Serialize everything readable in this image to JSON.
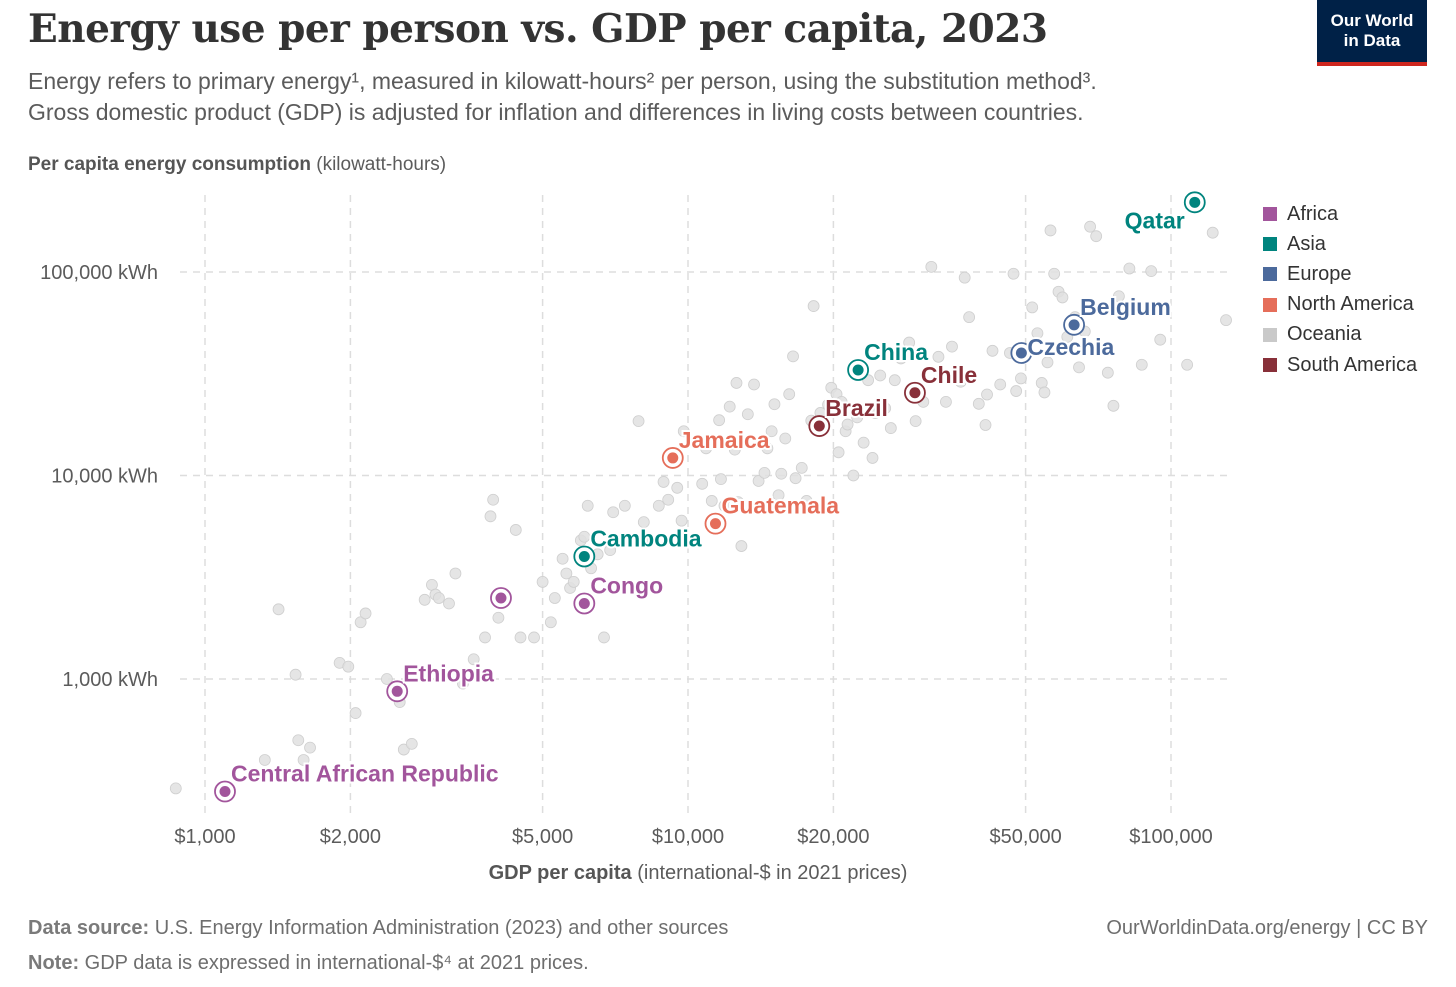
{
  "header": {
    "title": "Energy use per person vs. GDP per capita, 2023",
    "subtitle_line1": "Energy refers to primary energy¹, measured in kilowatt-hours² per person, using the substitution method³.",
    "subtitle_line2": "Gross domestic product (GDP) is adjusted for inflation and differences in living costs between countries.",
    "logo_line1": "Our World",
    "logo_line2": "in Data"
  },
  "footer": {
    "source_label": "Data source:",
    "source_text": "U.S. Energy Information Administration (2023) and other sources",
    "note_label": "Note:",
    "note_text": "GDP data is expressed in international-$⁴ at 2021 prices.",
    "url": "OurWorldinData.org/energy",
    "license": "| CC BY"
  },
  "colors": {
    "Africa": "#a2559c",
    "Asia": "#00847e",
    "Europe": "#4c6a9c",
    "North America": "#e56e5a",
    "Oceania": "#c9c9c9",
    "South America": "#883039",
    "background_point": "#e1e1e1",
    "grid": "#dddddd"
  },
  "chart_data": {
    "type": "scatter",
    "title": "Energy use per person vs. GDP per capita, 2023",
    "xlabel": "GDP per capita",
    "xlabel_unit": "(international-$ in 2021 prices)",
    "ylabel": "Per capita energy consumption",
    "ylabel_unit": "(kilowatt-hours)",
    "x_scale": "log",
    "y_scale": "log",
    "xlim": [
      850,
      135000
    ],
    "ylim": [
      220,
      230000
    ],
    "x_ticks": [
      {
        "value": 1000,
        "label": "$1,000"
      },
      {
        "value": 2000,
        "label": "$2,000"
      },
      {
        "value": 5000,
        "label": "$5,000"
      },
      {
        "value": 10000,
        "label": "$10,000"
      },
      {
        "value": 20000,
        "label": "$20,000"
      },
      {
        "value": 50000,
        "label": "$50,000"
      },
      {
        "value": 100000,
        "label": "$100,000"
      }
    ],
    "y_ticks": [
      {
        "value": 1000,
        "label": "1,000 kWh"
      },
      {
        "value": 10000,
        "label": "10,000 kWh"
      },
      {
        "value": 100000,
        "label": "100,000 kWh"
      }
    ],
    "grid": true,
    "legend_position": "right",
    "legend": [
      "Africa",
      "Asia",
      "Europe",
      "North America",
      "Oceania",
      "South America"
    ],
    "highlighted": [
      {
        "name": "Qatar",
        "region": "Asia",
        "x": 112000,
        "y": 220000,
        "label_pos": "left-below"
      },
      {
        "name": "Belgium",
        "region": "Europe",
        "x": 63000,
        "y": 55000,
        "label_pos": "right-above"
      },
      {
        "name": "Czechia",
        "region": "Europe",
        "x": 49000,
        "y": 40000,
        "label_pos": "right"
      },
      {
        "name": "China",
        "region": "Asia",
        "x": 22500,
        "y": 33000,
        "label_pos": "right-above"
      },
      {
        "name": "Chile",
        "region": "South America",
        "x": 29500,
        "y": 25500,
        "label_pos": "right-above"
      },
      {
        "name": "Brazil",
        "region": "South America",
        "x": 18700,
        "y": 17500,
        "label_pos": "right-above"
      },
      {
        "name": "Jamaica",
        "region": "North America",
        "x": 9300,
        "y": 12200,
        "label_pos": "right-above"
      },
      {
        "name": "Guatemala",
        "region": "North America",
        "x": 11400,
        "y": 5800,
        "label_pos": "right-above"
      },
      {
        "name": "Cambodia",
        "region": "Asia",
        "x": 6100,
        "y": 4000,
        "label_pos": "right-above"
      },
      {
        "name": "Congo",
        "region": "Africa",
        "x": 6100,
        "y": 2350,
        "label_pos": "right-above"
      },
      {
        "name": "",
        "region": "Africa",
        "x": 4100,
        "y": 2500,
        "label_pos": "none"
      },
      {
        "name": "Ethiopia",
        "region": "Africa",
        "x": 2500,
        "y": 870,
        "label_pos": "right-above"
      },
      {
        "name": "Central African Republic",
        "region": "Africa",
        "x": 1100,
        "y": 280,
        "label_pos": "right-above"
      }
    ],
    "background_points": [
      [
        870,
        290
      ],
      [
        1330,
        400
      ],
      [
        1420,
        2200
      ],
      [
        1540,
        1050
      ],
      [
        1560,
        500
      ],
      [
        1600,
        400
      ],
      [
        1650,
        460
      ],
      [
        1900,
        1200
      ],
      [
        1980,
        1150
      ],
      [
        2050,
        680
      ],
      [
        2100,
        1900
      ],
      [
        2150,
        2100
      ],
      [
        2380,
        1000
      ],
      [
        2530,
        770
      ],
      [
        2580,
        450
      ],
      [
        2680,
        480
      ],
      [
        2850,
        2450
      ],
      [
        2950,
        2900
      ],
      [
        3000,
        2600
      ],
      [
        3050,
        2500
      ],
      [
        3200,
        2350
      ],
      [
        3300,
        3300
      ],
      [
        3420,
        950
      ],
      [
        3600,
        1250
      ],
      [
        3800,
        1600
      ],
      [
        3900,
        6300
      ],
      [
        3950,
        7600
      ],
      [
        4050,
        2000
      ],
      [
        4400,
        5400
      ],
      [
        4500,
        1600
      ],
      [
        4800,
        1600
      ],
      [
        5000,
        3000
      ],
      [
        5200,
        1900
      ],
      [
        5300,
        2500
      ],
      [
        5500,
        3900
      ],
      [
        5600,
        3300
      ],
      [
        5700,
        2800
      ],
      [
        5800,
        3000
      ],
      [
        6000,
        4800
      ],
      [
        6100,
        5000
      ],
      [
        6200,
        7100
      ],
      [
        6300,
        3500
      ],
      [
        6500,
        4100
      ],
      [
        6700,
        1600
      ],
      [
        6900,
        4300
      ],
      [
        7000,
        6600
      ],
      [
        7400,
        7100
      ],
      [
        7900,
        18500
      ],
      [
        8100,
        5900
      ],
      [
        8300,
        4700
      ],
      [
        8700,
        7100
      ],
      [
        8900,
        9300
      ],
      [
        9100,
        7600
      ],
      [
        9500,
        8700
      ],
      [
        9700,
        6000
      ],
      [
        9800,
        16500
      ],
      [
        10300,
        4800
      ],
      [
        10700,
        9100
      ],
      [
        10900,
        13600
      ],
      [
        11200,
        7500
      ],
      [
        11600,
        18700
      ],
      [
        11700,
        9600
      ],
      [
        11900,
        7100
      ],
      [
        12200,
        21800
      ],
      [
        12500,
        13400
      ],
      [
        12600,
        28500
      ],
      [
        12700,
        7400
      ],
      [
        12900,
        4500
      ],
      [
        13300,
        20000
      ],
      [
        13700,
        28000
      ],
      [
        14000,
        9400
      ],
      [
        14400,
        10300
      ],
      [
        14600,
        13600
      ],
      [
        14900,
        16500
      ],
      [
        15100,
        22400
      ],
      [
        15400,
        8000
      ],
      [
        15600,
        10200
      ],
      [
        15900,
        15200
      ],
      [
        16200,
        25100
      ],
      [
        16500,
        38500
      ],
      [
        16700,
        9700
      ],
      [
        17200,
        10900
      ],
      [
        17600,
        7500
      ],
      [
        18000,
        18600
      ],
      [
        18200,
        68000
      ],
      [
        18800,
        20300
      ],
      [
        19500,
        22300
      ],
      [
        19800,
        27000
      ],
      [
        20300,
        25100
      ],
      [
        20500,
        13000
      ],
      [
        20800,
        23000
      ],
      [
        21200,
        16500
      ],
      [
        21400,
        17800
      ],
      [
        22000,
        10000
      ],
      [
        22400,
        19300
      ],
      [
        23100,
        14500
      ],
      [
        23600,
        29400
      ],
      [
        24100,
        12200
      ],
      [
        24400,
        20300
      ],
      [
        25000,
        31000
      ],
      [
        25600,
        21400
      ],
      [
        26300,
        17100
      ],
      [
        26800,
        29400
      ],
      [
        27600,
        37600
      ],
      [
        28700,
        45000
      ],
      [
        29600,
        18500
      ],
      [
        30700,
        23000
      ],
      [
        31900,
        106000
      ],
      [
        33000,
        38300
      ],
      [
        34200,
        23000
      ],
      [
        35200,
        43000
      ],
      [
        36700,
        28900
      ],
      [
        37400,
        93800
      ],
      [
        38200,
        60000
      ],
      [
        40000,
        22500
      ],
      [
        41300,
        17700
      ],
      [
        41600,
        25000
      ],
      [
        42700,
        41000
      ],
      [
        44300,
        28000
      ],
      [
        46400,
        40000
      ],
      [
        47200,
        98000
      ],
      [
        47800,
        26000
      ],
      [
        48900,
        30000
      ],
      [
        49700,
        42000
      ],
      [
        51600,
        67000
      ],
      [
        52900,
        50000
      ],
      [
        54000,
        28500
      ],
      [
        54700,
        25600
      ],
      [
        55500,
        36000
      ],
      [
        56300,
        160000
      ],
      [
        57300,
        98000
      ],
      [
        58500,
        80000
      ],
      [
        59600,
        75000
      ],
      [
        61000,
        48000
      ],
      [
        63300,
        60000
      ],
      [
        64500,
        34000
      ],
      [
        66300,
        51000
      ],
      [
        68000,
        167000
      ],
      [
        70000,
        150000
      ],
      [
        74000,
        32000
      ],
      [
        76000,
        22000
      ],
      [
        78000,
        76000
      ],
      [
        82000,
        104000
      ],
      [
        87000,
        35000
      ],
      [
        91000,
        101000
      ],
      [
        95000,
        46500
      ],
      [
        108000,
        35000
      ],
      [
        122000,
        156000
      ],
      [
        130000,
        58000
      ]
    ]
  }
}
